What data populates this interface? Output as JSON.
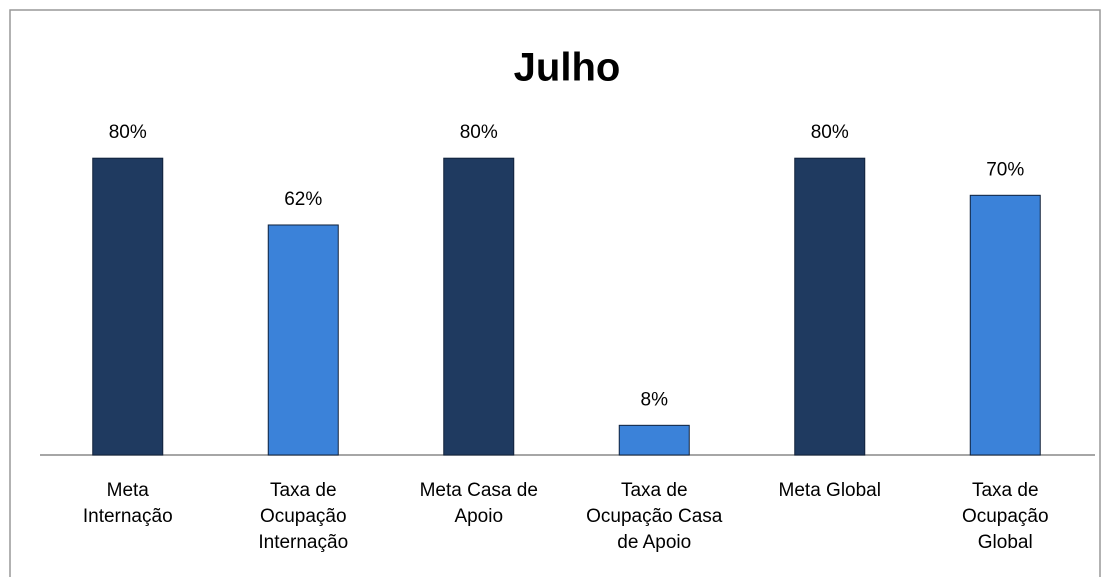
{
  "chart_data": {
    "type": "bar",
    "title": "Julho",
    "categories": [
      "Meta Internação",
      "Taxa de Ocupação Internação",
      "Meta Casa de Apoio",
      "Taxa de Ocupação Casa de Apoio",
      "Meta Global",
      "Taxa de Ocupação Global"
    ],
    "values": [
      80,
      62,
      80,
      8,
      80,
      70
    ],
    "value_labels": [
      "80%",
      "62%",
      "80%",
      "8%",
      "80%",
      "70%"
    ],
    "colors": [
      "#1f3a60",
      "#3b82d9",
      "#1f3a60",
      "#3b82d9",
      "#1f3a60",
      "#3b82d9"
    ],
    "ylim": [
      0,
      100
    ]
  }
}
